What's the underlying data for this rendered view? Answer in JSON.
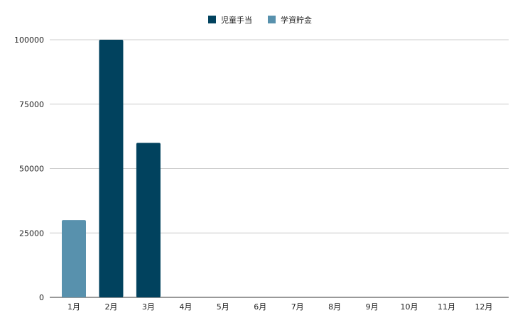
{
  "chart_data": {
    "type": "bar",
    "stacked": true,
    "title": "",
    "xlabel": "",
    "ylabel": "",
    "categories": [
      "1月",
      "2月",
      "3月",
      "4月",
      "5月",
      "6月",
      "7月",
      "8月",
      "9月",
      "10月",
      "11月",
      "12月"
    ],
    "series": [
      {
        "name": "児童手当",
        "color": "#01425e",
        "values": [
          0,
          100000,
          60000,
          0,
          0,
          0,
          0,
          0,
          0,
          0,
          0,
          0
        ]
      },
      {
        "name": "学資貯金",
        "color": "#5891ad",
        "values": [
          30000,
          0,
          0,
          0,
          0,
          0,
          0,
          0,
          0,
          0,
          0,
          0
        ]
      }
    ],
    "ylim": [
      0,
      100000
    ],
    "yticks": [
      0,
      25000,
      50000,
      75000,
      100000
    ],
    "grid": true,
    "legend_position": "top"
  }
}
